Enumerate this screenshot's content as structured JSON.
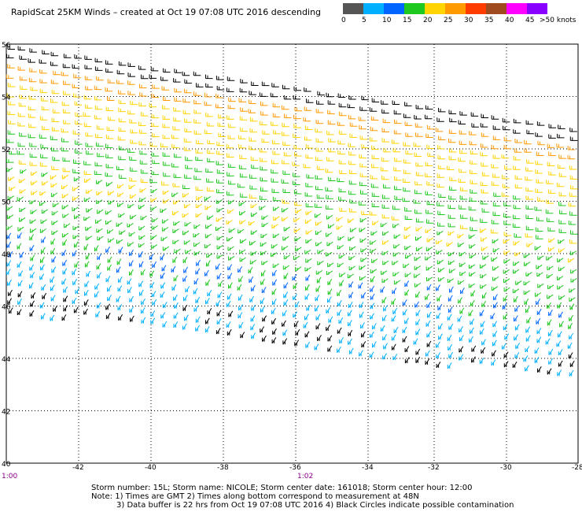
{
  "title": "RapidScat 25KM Winds – created at Oct 19 07:08 UTC 2016 descending",
  "legend": {
    "colors": [
      "#555555",
      "#00b0ff",
      "#0066ff",
      "#1ec81e",
      "#ffd400",
      "#ff9a00",
      "#ff3c00",
      "#a04a20",
      "#ff00ff",
      "#8a00ff"
    ],
    "labels": [
      "0",
      "5",
      "10",
      "15",
      "20",
      "25",
      "30",
      "35",
      "40",
      "45",
      ">50 knots"
    ]
  },
  "axes": {
    "lat_labels": [
      "56",
      "54",
      "52",
      "50",
      "48",
      "46",
      "44",
      "42",
      "40"
    ],
    "lon_labels": [
      "-42",
      "-40",
      "-38",
      "-36",
      "-34",
      "-32",
      "-30",
      "-28"
    ]
  },
  "times": {
    "left": "1:00",
    "mid": "1:02"
  },
  "footer": {
    "line1": "Storm number: 15L;  Storm name: NICOLE;  Storm center date: 161018;  Storm center hour: 12:00",
    "line2": "Note: 1) Times are GMT  2) Times along bottom correspond to measurement at 48N",
    "line3": "3) Data buffer is 22 hrs from Oct 19 07:08 UTC 2016  4) Black Circles indicate possible contamination"
  }
}
